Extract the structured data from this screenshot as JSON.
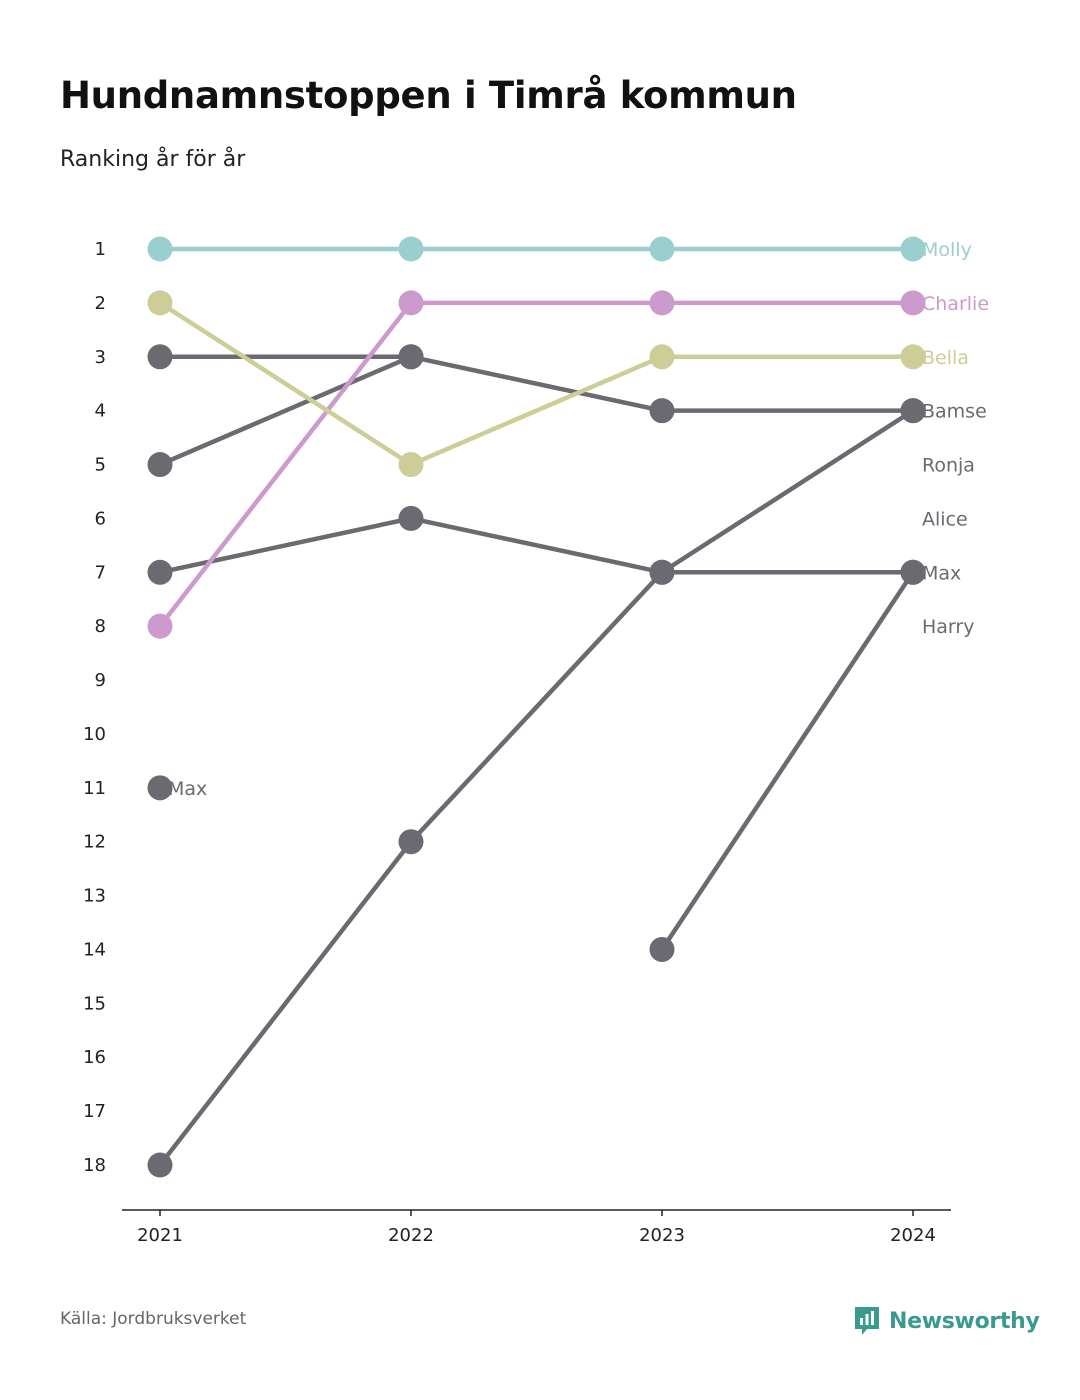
{
  "title": "Hundnamnstoppen i Timrå kommun",
  "subtitle": "Ranking år för år",
  "source": "Källa: Jordbruksverket",
  "logo": {
    "name": "Newsworthy",
    "icon": "newsworthy-logo-icon",
    "color": "#3a9a8f"
  },
  "chart_data": {
    "type": "line",
    "x": [
      "2021",
      "2022",
      "2023",
      "2024"
    ],
    "y_ticks": [
      "1",
      "2",
      "3",
      "4",
      "5",
      "6",
      "7",
      "8",
      "9",
      "10",
      "11",
      "12",
      "13",
      "14",
      "15",
      "16",
      "17",
      "18"
    ],
    "ylim": [
      1,
      18
    ],
    "y_reversed": true,
    "grid": false,
    "series": [
      {
        "name": "Molly",
        "color": "#9bcfcf",
        "values": [
          1,
          1,
          1,
          1
        ]
      },
      {
        "name": "Charlie",
        "color": "#cc9acc",
        "values": [
          8,
          2,
          2,
          2
        ]
      },
      {
        "name": "Bella",
        "color": "#cdcd98",
        "values": [
          2,
          5,
          3,
          3
        ]
      },
      {
        "name": "Bamse",
        "color": "#6b6a70",
        "values": [
          18,
          12,
          7,
          4
        ]
      },
      {
        "name": "Ronja",
        "color": "#6b6a70",
        "values": [
          3,
          3,
          4,
          4
        ]
      },
      {
        "name": "Alice",
        "color": "#6b6a70",
        "values": [
          5,
          3,
          null,
          null
        ]
      },
      {
        "name": "Max",
        "color": "#6b6a70",
        "values": [
          7,
          6,
          7,
          7
        ]
      },
      {
        "name": "Harry",
        "color": "#6b6a70",
        "values": [
          null,
          null,
          14,
          7
        ]
      },
      {
        "name": "Max",
        "color": "#6b6a70",
        "values": [
          11,
          null,
          null,
          null
        ]
      }
    ],
    "end_labels": [
      {
        "text": "Molly",
        "color": "#9bcfcf",
        "rank": 1
      },
      {
        "text": "Charlie",
        "color": "#cc9acc",
        "rank": 2
      },
      {
        "text": "Bella",
        "color": "#cdcd98",
        "rank": 3
      },
      {
        "text": "Bamse",
        "color": "#6b6a70",
        "rank": 4
      },
      {
        "text": "Ronja",
        "color": "#6b6a70",
        "rank": 5
      },
      {
        "text": "Alice",
        "color": "#6b6a70",
        "rank": 6
      },
      {
        "text": "Max",
        "color": "#6b6a70",
        "rank": 7
      },
      {
        "text": "Harry",
        "color": "#6b6a70",
        "rank": 8
      }
    ],
    "start_labels": [
      {
        "text": "Max",
        "color": "#6b6a70",
        "rank": 11
      }
    ]
  }
}
